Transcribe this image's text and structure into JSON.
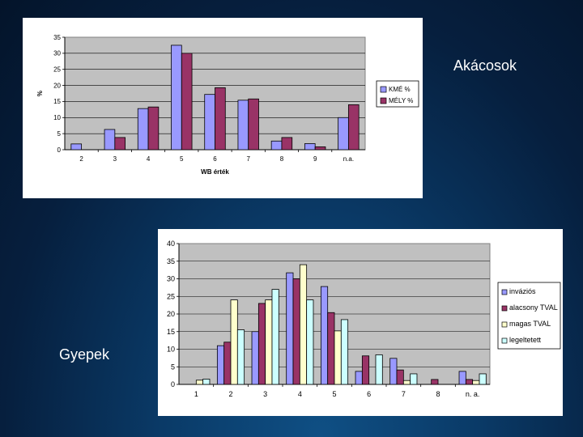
{
  "slide": {
    "label_top": "Akácosok",
    "label_bottom": "Gyepek"
  },
  "chart_data": [
    {
      "type": "bar",
      "categories": [
        "2",
        "3",
        "4",
        "5",
        "6",
        "7",
        "8",
        "9",
        "n.a."
      ],
      "series": [
        {
          "name": "KMÉ %",
          "color": "#9999ff",
          "values": [
            1.8,
            6.3,
            12.8,
            32.5,
            17.2,
            15.4,
            2.7,
            1.9,
            10.0
          ]
        },
        {
          "name": "MÉLY %",
          "color": "#993366",
          "values": [
            0,
            3.8,
            13.3,
            30.0,
            19.3,
            15.8,
            3.8,
            0.9,
            14.0
          ]
        }
      ],
      "xlabel": "WB érték",
      "ylabel": "%",
      "ylim": [
        0,
        35
      ],
      "yticks": [
        "0",
        "5",
        "10",
        "15",
        "20",
        "25",
        "30",
        "35"
      ],
      "plot_background": "#c0c0c0",
      "grid": true,
      "legend": "right"
    },
    {
      "type": "bar",
      "categories": [
        "1",
        "2",
        "3",
        "4",
        "5",
        "6",
        "7",
        "8",
        "n. a."
      ],
      "series": [
        {
          "name": "inváziós",
          "color": "#9999ff",
          "values": [
            0,
            11,
            15,
            31.7,
            27.8,
            3.7,
            7.4,
            0,
            3.7
          ]
        },
        {
          "name": "alacsony TVAL",
          "color": "#993366",
          "values": [
            0,
            12,
            23,
            30,
            20.4,
            8.1,
            4.1,
            1.4,
            1.4
          ]
        },
        {
          "name": "magas TVAL",
          "color": "#ffffcc",
          "values": [
            1.2,
            24,
            24,
            34,
            15.2,
            0,
            1.1,
            0,
            1.1
          ]
        },
        {
          "name": "legeltetett",
          "color": "#ccffff",
          "values": [
            1.5,
            15.5,
            27,
            24,
            18.4,
            8.4,
            3.0,
            0,
            3.0
          ]
        }
      ],
      "xlabel": "",
      "ylabel": "",
      "ylim": [
        0,
        40
      ],
      "yticks": [
        "0",
        "5",
        "10",
        "15",
        "20",
        "25",
        "30",
        "35",
        "40"
      ],
      "plot_background": "#c0c0c0",
      "grid": true,
      "legend": "right"
    }
  ]
}
